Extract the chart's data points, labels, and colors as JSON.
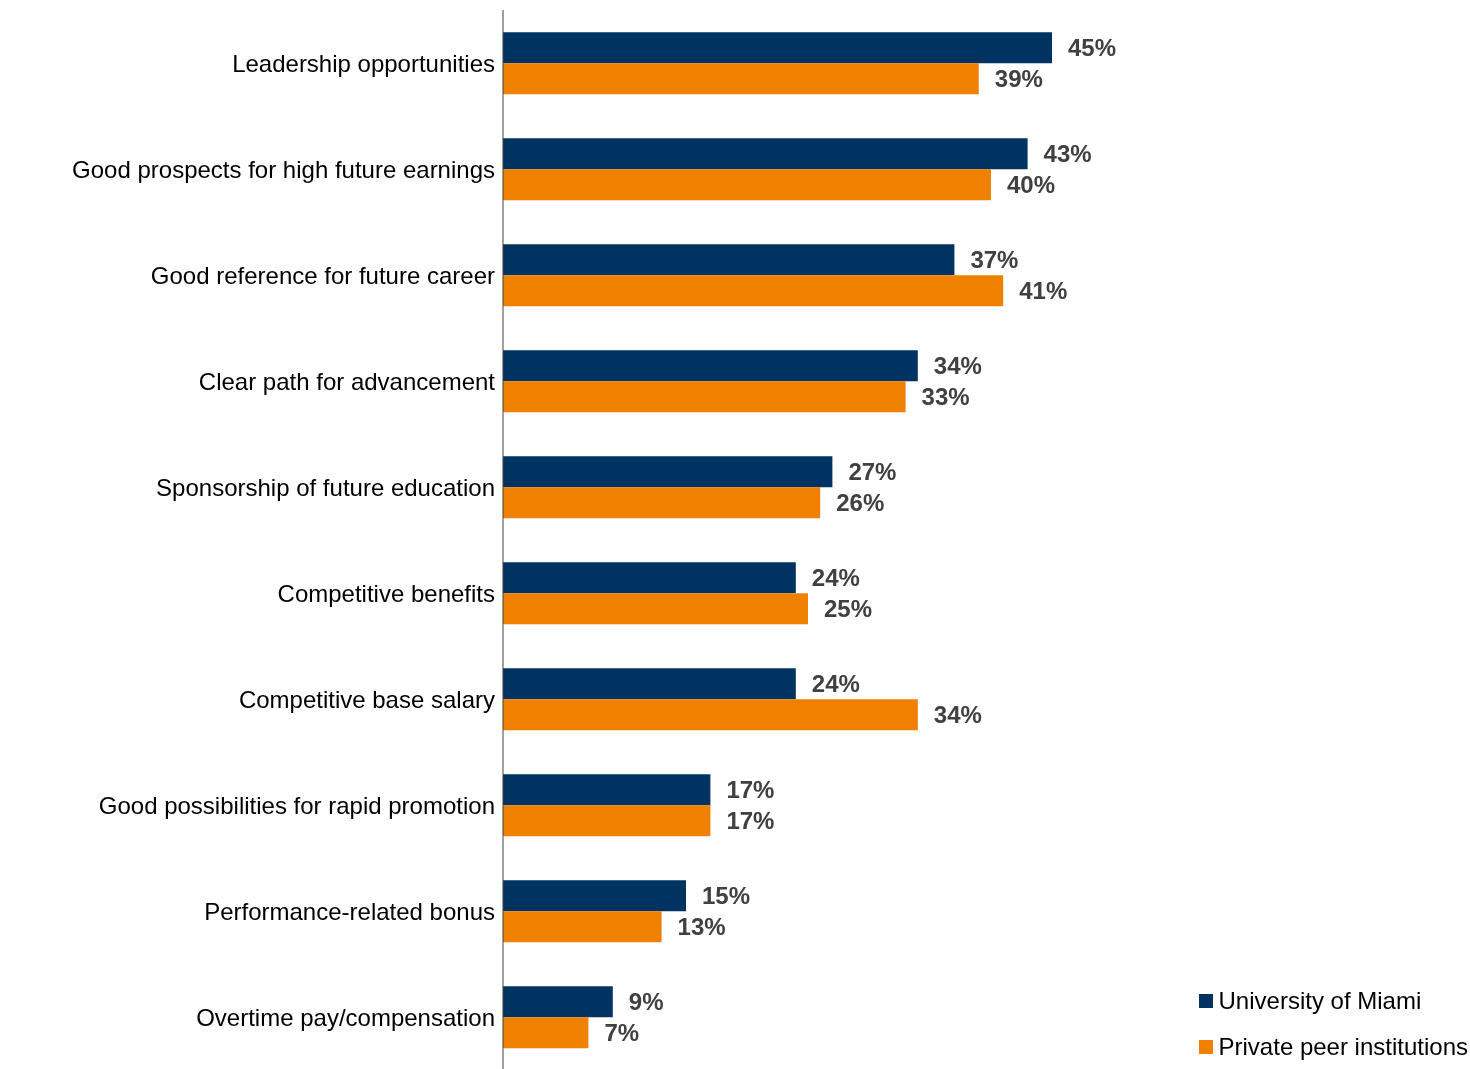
{
  "chart_data": {
    "type": "bar",
    "orientation": "horizontal",
    "legend": "bottom right",
    "categories": [
      "Leadership opportunities",
      "Good prospects for high future earnings",
      "Good reference for future career",
      "Clear path for advancement",
      "Sponsorship of future education",
      "Competitive benefits",
      "Competitive base salary",
      "Good possibilities for rapid promotion",
      "Performance-related bonus",
      "Overtime pay/compensation"
    ],
    "series": [
      {
        "name": "University of Miami",
        "color": "#003361",
        "values": [
          45,
          43,
          37,
          34,
          27,
          24,
          24,
          17,
          15,
          9
        ],
        "value_labels": [
          "45%",
          "43%",
          "37%",
          "34%",
          "27%",
          "24%",
          "24%",
          "17%",
          "15%",
          "9%"
        ]
      },
      {
        "name": "Private peer institutions",
        "color": "#f08000",
        "values": [
          39,
          40,
          41,
          33,
          26,
          25,
          34,
          17,
          13,
          7
        ],
        "value_labels": [
          "39%",
          "40%",
          "41%",
          "33%",
          "26%",
          "25%",
          "34%",
          "17%",
          "13%",
          "7%"
        ]
      }
    ]
  }
}
